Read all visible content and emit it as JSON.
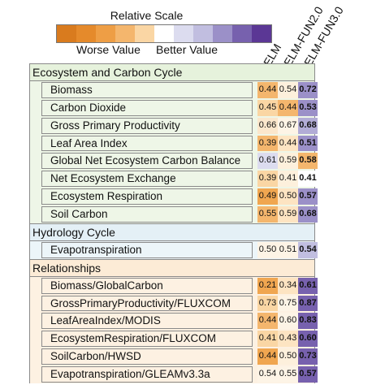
{
  "legend": {
    "title": "Relative Scale",
    "worse_label": "Worse Value",
    "better_label": "Better Value",
    "colors": [
      "#d97b1e",
      "#e58a2b",
      "#ee9e45",
      "#f4b66d",
      "#fad6a4",
      "#ffffff",
      "#dcdcef",
      "#c1bee0",
      "#9b90c8",
      "#7761ae",
      "#5b3795"
    ]
  },
  "chart_data": {
    "type": "table",
    "columns": [
      "ELM",
      "ELM-FUN2.0",
      "ELM-FUN3.0"
    ],
    "rows": [
      {
        "label": "Ecosystem and Carbon Cycle",
        "header": true,
        "group": "carbon",
        "values": []
      },
      {
        "label": "Biomass",
        "group": "carbon",
        "values": [
          "0.44",
          "0.54",
          "0.72"
        ],
        "colors": [
          "#f4b66d",
          "#fdf0dc",
          "#9b90c8"
        ]
      },
      {
        "label": "Carbon Dioxide",
        "group": "carbon",
        "values": [
          "0.45",
          "0.44",
          "0.53"
        ],
        "colors": [
          "#fad6a4",
          "#f4b66d",
          "#9b90c8"
        ]
      },
      {
        "label": "Gross Primary Productivity",
        "group": "carbon",
        "values": [
          "0.66",
          "0.67",
          "0.68"
        ],
        "colors": [
          "#fbe7cc",
          "#fdf4e6",
          "#b2acd6"
        ]
      },
      {
        "label": "Leaf Area Index",
        "group": "carbon",
        "values": [
          "0.39",
          "0.44",
          "0.51"
        ],
        "colors": [
          "#f4b66d",
          "#fde4c2",
          "#9b90c8"
        ]
      },
      {
        "label": "Global Net Ecosystem Carbon Balance",
        "group": "carbon",
        "values": [
          "0.61",
          "0.59",
          "0.58"
        ],
        "colors": [
          "#dcdcef",
          "#fdf0dc",
          "#f4b66d"
        ]
      },
      {
        "label": "Net Ecosystem Exchange",
        "group": "carbon",
        "values": [
          "0.39",
          "0.41",
          "0.41"
        ],
        "colors": [
          "#fad6a4",
          "#fdf0dc",
          "#ffffff"
        ]
      },
      {
        "label": "Ecosystem Respiration",
        "group": "carbon",
        "values": [
          "0.49",
          "0.50",
          "0.57"
        ],
        "colors": [
          "#f0a650",
          "#fde4c2",
          "#9b90c8"
        ]
      },
      {
        "label": "Soil Carbon",
        "group": "carbon",
        "values": [
          "0.55",
          "0.59",
          "0.68"
        ],
        "colors": [
          "#f4b66d",
          "#fde4c2",
          "#9b90c8"
        ]
      },
      {
        "label": "Hydrology Cycle",
        "header": true,
        "group": "hydro",
        "values": []
      },
      {
        "label": "Evapotranspiration",
        "group": "hydro",
        "values": [
          "0.50",
          "0.51",
          "0.54"
        ],
        "colors": [
          "#fdf4e6",
          "#fdf4e6",
          "#c1bee0"
        ]
      },
      {
        "label": "Relationships",
        "header": true,
        "group": "rel",
        "values": []
      },
      {
        "label": "Biomass/GlobalCarbon",
        "group": "rel",
        "values": [
          "0.21",
          "0.34",
          "0.61"
        ],
        "colors": [
          "#f0a650",
          "#fde4c2",
          "#7761ae"
        ]
      },
      {
        "label": "GrossPrimaryProductivity/FLUXCOM",
        "group": "rel",
        "values": [
          "0.73",
          "0.75",
          "0.87"
        ],
        "colors": [
          "#fad6a4",
          "#fdf4e6",
          "#7761ae"
        ]
      },
      {
        "label": "LeafAreaIndex/MODIS",
        "group": "rel",
        "values": [
          "0.44",
          "0.60",
          "0.83"
        ],
        "colors": [
          "#f4b66d",
          "#fdf4e6",
          "#7761ae"
        ]
      },
      {
        "label": "EcosystemRespiration/FLUXCOM",
        "group": "rel",
        "values": [
          "0.41",
          "0.43",
          "0.60"
        ],
        "colors": [
          "#fad6a4",
          "#fde4c2",
          "#7761ae"
        ]
      },
      {
        "label": "SoilCarbon/HWSD",
        "group": "rel",
        "values": [
          "0.44",
          "0.50",
          "0.73"
        ],
        "colors": [
          "#f0a650",
          "#fdf0dc",
          "#7761ae"
        ]
      },
      {
        "label": "Evapotranspiration/GLEAMv3.3a",
        "group": "rel",
        "values": [
          "0.54",
          "0.55",
          "0.57"
        ],
        "colors": [
          "#fdf4e6",
          "#fdf4e6",
          "#7761ae"
        ]
      }
    ]
  },
  "group_colors": {
    "carbon": {
      "header": "#e6f2dc",
      "row": "#eef6e7"
    },
    "hydro": {
      "header": "#e4f0f6",
      "row": "#ecf5f9"
    },
    "rel": {
      "header": "#fcebd6",
      "row": "#fdf1e2"
    }
  }
}
